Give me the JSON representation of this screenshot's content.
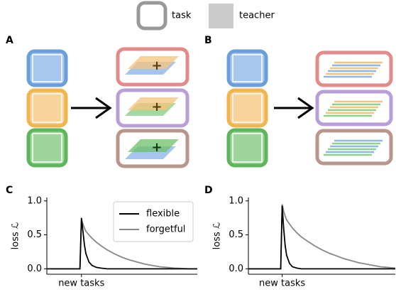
{
  "legend": {
    "task": "task",
    "teacher": "teacher"
  },
  "panels": [
    "A",
    "B",
    "C",
    "D"
  ],
  "chart_data": [
    {
      "type": "line",
      "ylabel": "loss ℒ",
      "x": [
        0,
        22,
        23,
        24,
        25,
        26,
        28,
        30,
        33,
        36,
        40,
        45,
        50,
        55,
        60,
        65,
        70,
        75,
        80,
        85,
        90,
        95,
        100
      ],
      "series": [
        {
          "name": "flexible",
          "color": "#000000",
          "values": [
            0,
            0,
            0.75,
            0.55,
            0.35,
            0.22,
            0.1,
            0.05,
            0.02,
            0.01,
            0,
            0,
            0,
            0,
            0,
            0,
            0,
            0,
            0,
            0,
            0,
            0,
            0
          ]
        },
        {
          "name": "forgetful",
          "color": "#888888",
          "values": [
            0,
            0,
            0.72,
            0.66,
            0.6,
            0.55,
            0.5,
            0.45,
            0.39,
            0.34,
            0.28,
            0.22,
            0.17,
            0.13,
            0.1,
            0.07,
            0.05,
            0.03,
            0.02,
            0.01,
            0.005,
            0,
            0
          ]
        }
      ],
      "xlim": [
        0,
        100
      ],
      "xticks": [
        {
          "value": 23,
          "label": "new tasks"
        }
      ],
      "ylim": [
        -0.08,
        1.05
      ],
      "yticks": [
        {
          "value": 0,
          "label": "0.0"
        },
        {
          "value": 0.5,
          "label": "0.5"
        },
        {
          "value": 1,
          "label": "1.0"
        }
      ],
      "legend": "upper right"
    },
    {
      "type": "line",
      "ylabel": "loss ℒ",
      "x": [
        0,
        22,
        23,
        24,
        25,
        26,
        28,
        30,
        33,
        36,
        40,
        45,
        50,
        55,
        60,
        65,
        70,
        75,
        80,
        85,
        90,
        95,
        100
      ],
      "series": [
        {
          "color": "#000000",
          "values": [
            0,
            0,
            0.93,
            0.6,
            0.35,
            0.2,
            0.08,
            0.03,
            0.01,
            0,
            0,
            0,
            0,
            0,
            0,
            0,
            0,
            0,
            0,
            0,
            0,
            0,
            0
          ]
        },
        {
          "color": "#888888",
          "values": [
            0,
            0,
            0.95,
            0.85,
            0.78,
            0.72,
            0.66,
            0.6,
            0.53,
            0.47,
            0.41,
            0.34,
            0.28,
            0.23,
            0.19,
            0.15,
            0.12,
            0.09,
            0.07,
            0.05,
            0.03,
            0.02,
            0.01
          ]
        }
      ],
      "xlim": [
        0,
        100
      ],
      "xticks": [
        {
          "value": 23,
          "label": "new tasks"
        }
      ],
      "ylim": [
        -0.08,
        1.05
      ],
      "yticks": [
        {
          "value": 0,
          "label": "0.0"
        },
        {
          "value": 0.5,
          "label": "0.5"
        },
        {
          "value": 1,
          "label": "1.0"
        }
      ]
    }
  ]
}
